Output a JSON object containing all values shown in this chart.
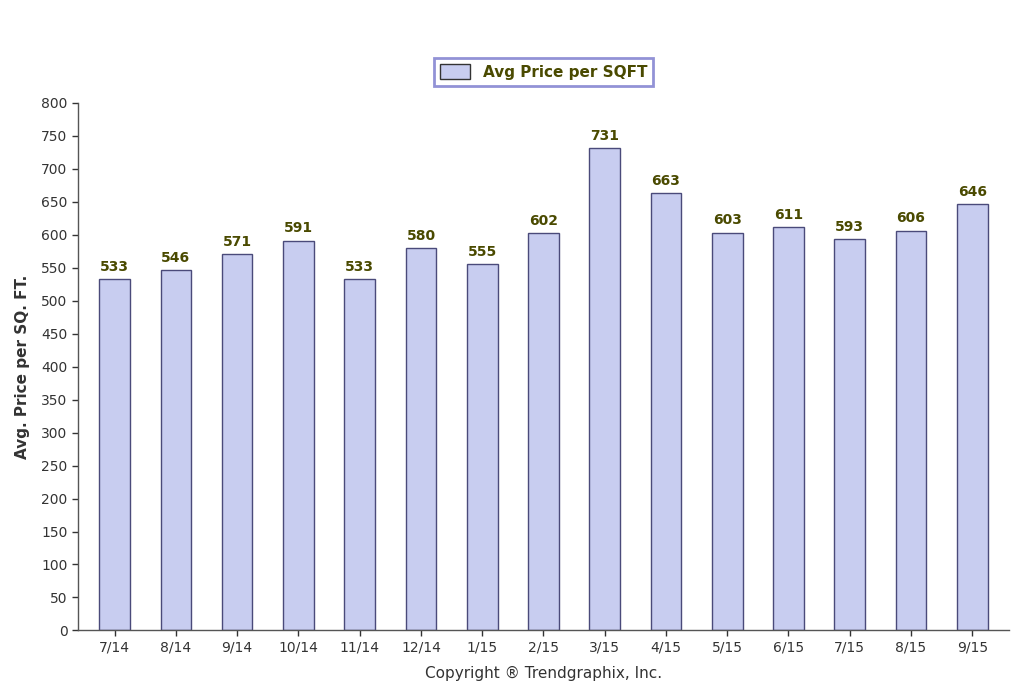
{
  "categories": [
    "7/14",
    "8/14",
    "9/14",
    "10/14",
    "11/14",
    "12/14",
    "1/15",
    "2/15",
    "3/15",
    "4/15",
    "5/15",
    "6/15",
    "7/15",
    "8/15",
    "9/15"
  ],
  "values": [
    533,
    546,
    571,
    591,
    533,
    580,
    555,
    602,
    731,
    663,
    603,
    611,
    593,
    606,
    646
  ],
  "bar_color": "#c8cdf0",
  "bar_edge_color": "#4a4a7a",
  "ylabel": "Avg. Price per SQ. FT.",
  "xlabel": "Copyright ® Trendgraphix, Inc.",
  "legend_label": "Avg Price per SQFT",
  "ylim": [
    0,
    800
  ],
  "yticks": [
    0,
    50,
    100,
    150,
    200,
    250,
    300,
    350,
    400,
    450,
    500,
    550,
    600,
    650,
    700,
    750,
    800
  ],
  "background_color": "#ffffff",
  "bar_width": 0.5,
  "label_fontsize": 10,
  "axis_fontsize": 11,
  "legend_fontsize": 11,
  "tick_fontsize": 10,
  "label_color": "#4a4a00",
  "legend_edge_color": "#7777cc",
  "axis_label_color": "#333333"
}
